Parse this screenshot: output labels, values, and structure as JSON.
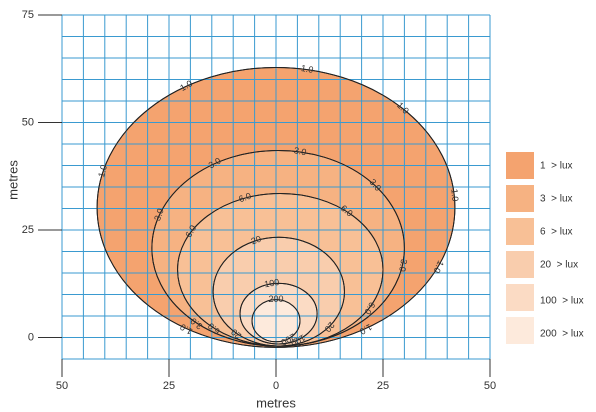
{
  "chart_data": {
    "type": "contour",
    "x_label": "metres",
    "y_label": "metres",
    "xlim": [
      -50,
      50
    ],
    "ylim": [
      -5,
      75
    ],
    "xticks": [
      {
        "value": -50,
        "label": "50"
      },
      {
        "value": -25,
        "label": "25"
      },
      0,
      25,
      50
    ],
    "yticks": [
      0,
      25,
      50,
      75
    ],
    "grid_step": 5,
    "series": [
      {
        "name": "1  > lux",
        "level": 1,
        "label": "1.0",
        "color": "#f4a36f",
        "bounds": [
          -41.8,
          41.8,
          -2.3,
          62.8
        ]
      },
      {
        "name": "3  > lux",
        "level": 3,
        "label": "3.0",
        "color": "#f6b282",
        "bounds": [
          -29,
          30,
          -2,
          43.5
        ]
      },
      {
        "name": "6  > lux",
        "level": 6,
        "label": "6.0",
        "color": "#f8c096",
        "bounds": [
          -23,
          25,
          -2,
          33.5
        ]
      },
      {
        "name": "20  > lux",
        "level": 20,
        "label": "20",
        "color": "#f9cdad",
        "bounds": [
          -14.7,
          16,
          -2,
          23.3
        ]
      },
      {
        "name": "100  > lux",
        "level": 100,
        "label": "100",
        "color": "#fbdbc4",
        "bounds": [
          -8.4,
          9.6,
          -1.5,
          12.6
        ]
      },
      {
        "name": "200  > lux",
        "level": 200,
        "label": "200",
        "color": "#fdeadc",
        "bounds": [
          -5.6,
          5.6,
          -1,
          8.8
        ]
      }
    ]
  }
}
